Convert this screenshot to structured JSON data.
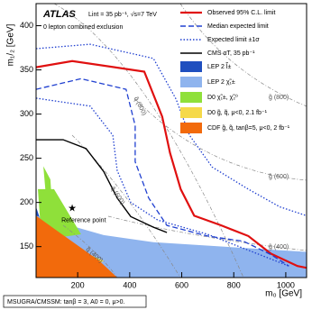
{
  "chart_data": {
    "type": "line",
    "xlabel": "m₀ [GeV]",
    "ylabel": "m₁/₂ [GeV]",
    "xlim": [
      40,
      1080
    ],
    "ylim": [
      115,
      425
    ],
    "xticks": [
      200,
      400,
      600,
      800,
      1000
    ],
    "yticks": [
      150,
      200,
      250,
      300,
      350,
      400
    ],
    "experiment": "ATLAS",
    "luminosity": "Lint = 35 pb⁻¹, √s=7 TeV",
    "analysis": "0 lepton combined exclusion",
    "model": "MSUGRA/CMSSM: tanβ = 3, A0 = 0, μ>0.",
    "iso_labels": [
      "q̃ (800)",
      "q̃ (600)",
      "q̃ (400)",
      "g̃ (800)",
      "g̃ (600)",
      "g̃ (400)"
    ],
    "reference_point": {
      "label": "Reference point",
      "x": 179,
      "y": 193
    },
    "areas": [
      {
        "name": "LEP 2 l̃±",
        "color": "#1f4fbf",
        "x": [
          40,
          75,
          75,
          40
        ],
        "values": [
          195,
          164,
          115,
          115
        ]
      },
      {
        "name": "LEP 2 χ̃₁±",
        "color": "#8fb4ee",
        "x": [
          40,
          300,
          491,
          1080,
          1080,
          40
        ],
        "values": [
          185,
          163,
          155,
          144,
          115,
          115
        ]
      },
      {
        "name": "D0 χ̃₁±, χ̃₂⁰",
        "color": "#8fe03a",
        "x": [
          68,
          95,
          102,
          92,
          57,
          47,
          109,
          213,
          92
        ],
        "values": [
          241,
          226,
          195,
          169,
          174,
          215,
          215,
          164,
          159
        ]
      },
      {
        "name": "D0 g̃, q̃, μ<0, 2.1 fb⁻¹",
        "color": "#f5d94a",
        "x": [
          144,
          300,
          248,
          109
        ],
        "values": [
          154,
          134,
          124,
          129
        ]
      },
      {
        "name": "CDF g̃, q̃, tanβ=5, μ<0, 2 fb⁻¹",
        "color": "#f26a0c",
        "x": [
          40,
          144,
          283,
          352,
          40
        ],
        "values": [
          185,
          163,
          134,
          115,
          115
        ]
      }
    ],
    "series": [
      {
        "name": "Observed 95% C.L. limit",
        "color": "#e01010",
        "style": "solid",
        "x": [
          40,
          179,
          456,
          525,
          555,
          596,
          648,
          752,
          856,
          943,
          1045,
          1080
        ],
        "values": [
          353,
          360,
          348,
          297,
          256,
          215,
          185,
          174,
          162,
          142,
          128,
          126
        ]
      },
      {
        "name": "Median expected limit",
        "color": "#2040d0",
        "style": "dashed",
        "x": [
          40,
          213,
          386,
          421,
          421,
          473,
          543,
          699,
          838,
          943,
          1012
        ],
        "values": [
          328,
          340,
          328,
          287,
          246,
          205,
          174,
          162,
          156,
          141,
          128
        ]
      },
      {
        "name": "Expected limit ±1σ",
        "color": "#2040d0",
        "style": "dotted",
        "x": [
          40,
          248,
          491,
          578,
          630,
          717,
          856,
          977,
          1080
        ],
        "values": [
          374,
          379,
          363,
          317,
          276,
          240,
          215,
          195,
          185
        ],
        "x2": [
          40,
          248,
          335,
          352,
          404,
          508,
          699,
          873,
          1012
        ],
        "values2": [
          318,
          309,
          276,
          236,
          200,
          180,
          164,
          144,
          128
        ]
      },
      {
        "name": "CMS αT, 35 pb⁻¹",
        "color": "#000000",
        "style": "solid",
        "x": [
          40,
          144,
          232,
          300,
          352,
          404,
          491,
          543
        ],
        "values": [
          271,
          271,
          261,
          235,
          205,
          184,
          172,
          166
        ]
      }
    ]
  }
}
